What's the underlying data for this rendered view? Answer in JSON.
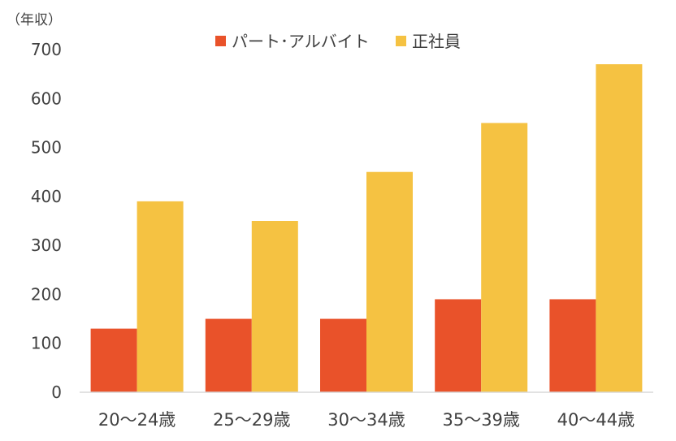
{
  "chart_data": {
    "type": "bar",
    "ylabel": "（年収）",
    "categories": [
      "20〜24歳",
      "25〜29歳",
      "30〜34歳",
      "35〜39歳",
      "40〜44歳"
    ],
    "series": [
      {
        "name": "パート･アルバイト",
        "values": [
          130,
          150,
          150,
          190,
          190
        ],
        "color": "#E9522A"
      },
      {
        "name": "正社員",
        "values": [
          390,
          350,
          450,
          550,
          670
        ],
        "color": "#F5C242"
      }
    ],
    "ylim": [
      0,
      700
    ],
    "yticks": [
      0,
      100,
      200,
      300,
      400,
      500,
      600,
      700
    ],
    "grid": false,
    "legend_position": "top-center"
  }
}
